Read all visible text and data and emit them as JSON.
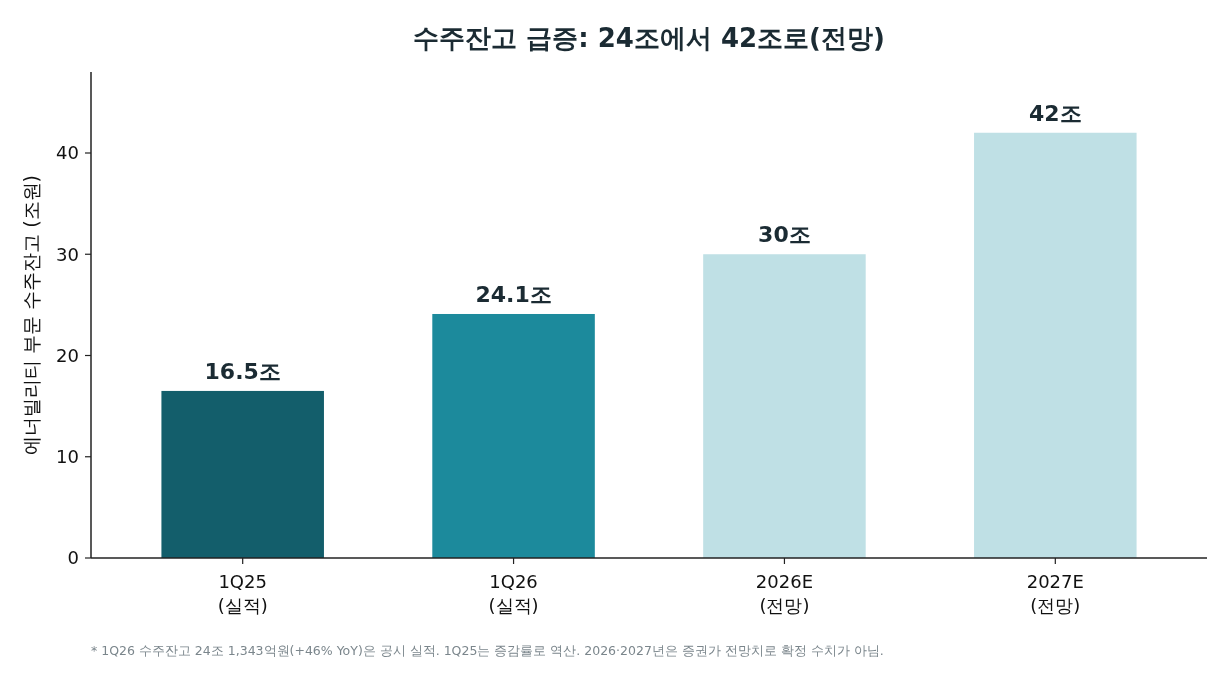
{
  "chart_data": {
    "type": "bar",
    "title": "수주잔고 급증: 24조에서 42조로(전망)",
    "ylabel": "에너빌리티 부문 수주잔고 (조원)",
    "categories": [
      "1Q25\n(실적)",
      "1Q26\n(실적)",
      "2026E\n(전망)",
      "2027E\n(전망)"
    ],
    "values": [
      16.5,
      24.1,
      30,
      42
    ],
    "colors": [
      "#135e6b",
      "#1c8a9c",
      "#bfe0e5",
      "#bfe0e5"
    ],
    "value_labels": [
      "16.5조",
      "24.1조",
      "30조",
      "42조"
    ],
    "ylim": [
      0,
      48
    ],
    "yticks": [
      0,
      10,
      20,
      30,
      40
    ],
    "grid": false,
    "annotations": [
      "* 1Q26 수주잔고 24조 1,343억원(+46% YoY)은 공시 실적. 1Q25는 증감률로 역산. 2026·2027년은 증권가 전망치로 확정 수치가 아님."
    ]
  }
}
